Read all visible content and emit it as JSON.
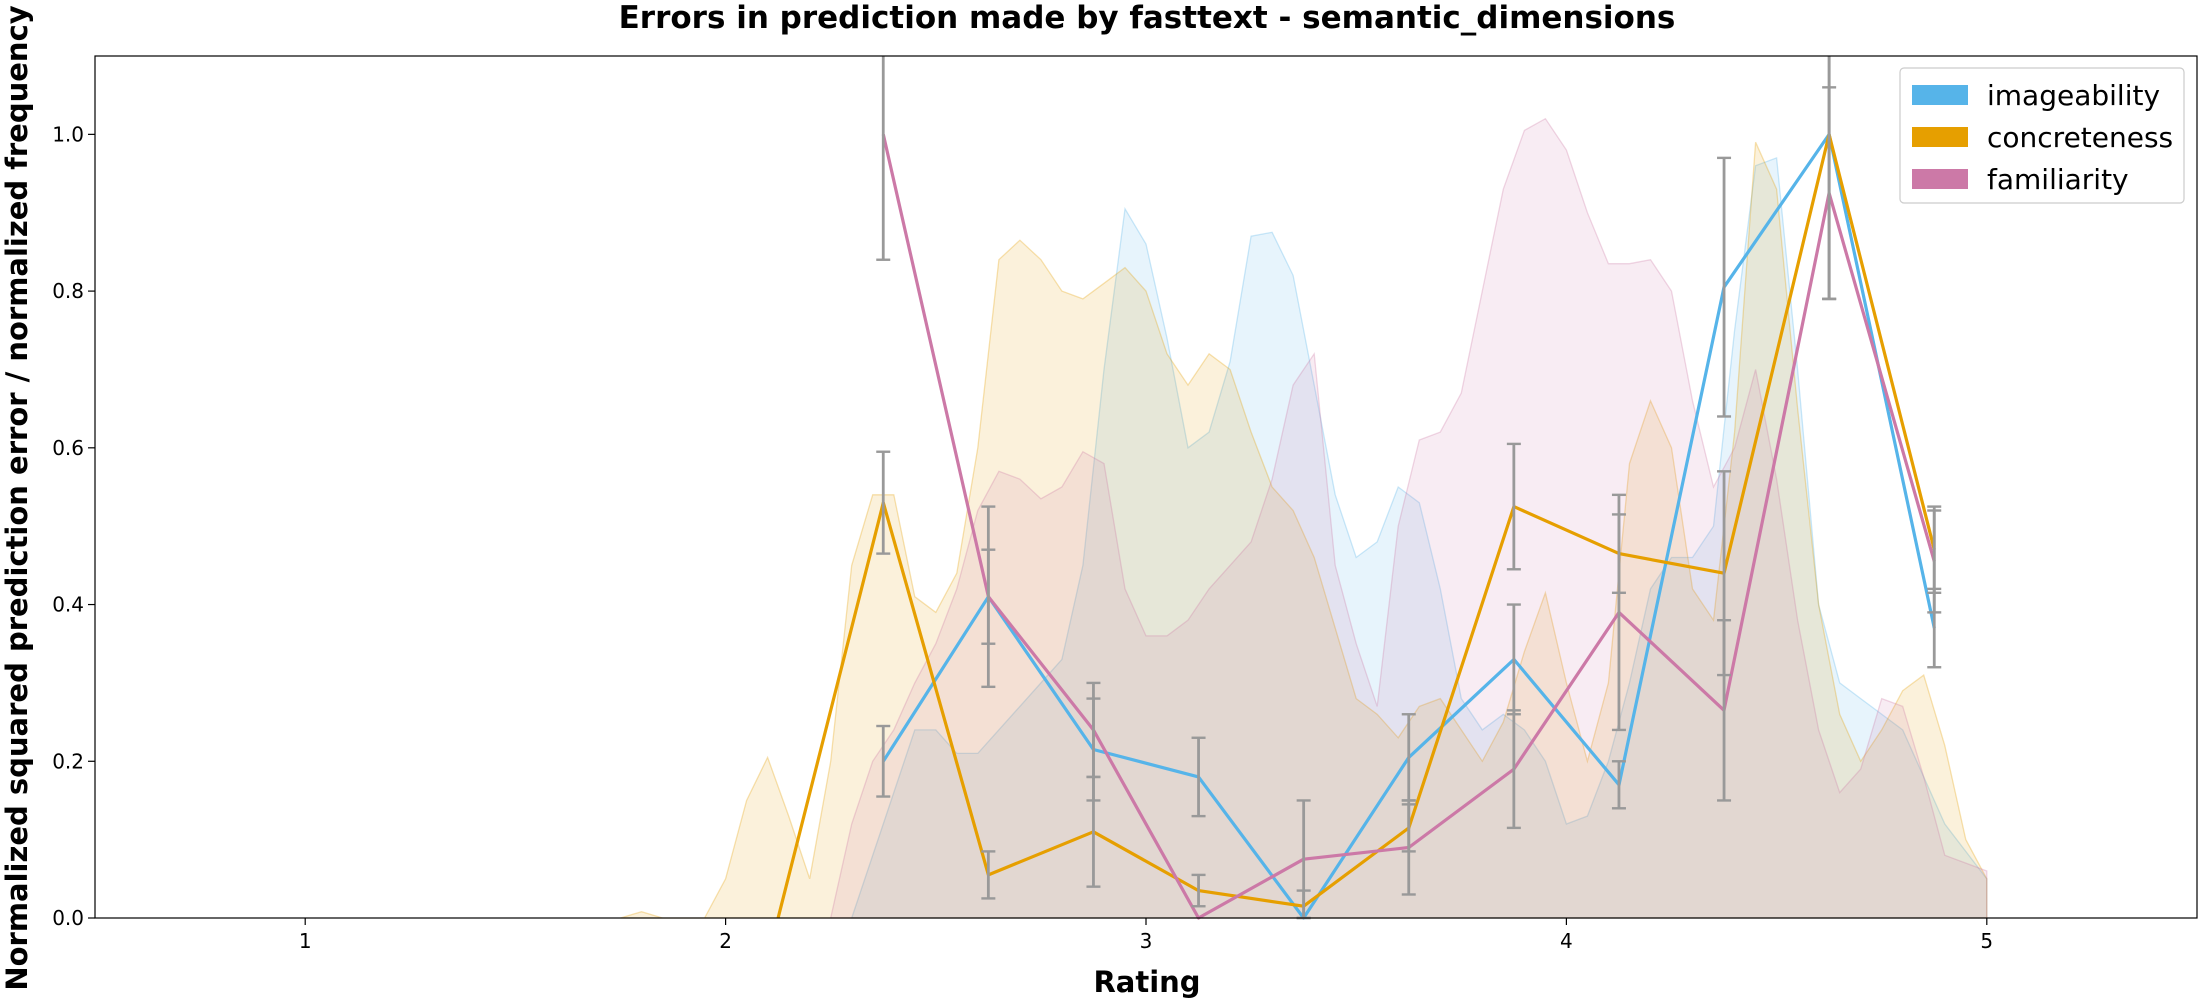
{
  "chart_data": {
    "type": "line",
    "title": "Errors in prediction made by fasttext - semantic_dimensions",
    "xlabel": "Rating",
    "ylabel": "Normalized squared prediction error / normalized frequency",
    "xlim": [
      0.5,
      5.5
    ],
    "ylim": [
      0,
      1.1
    ],
    "xticks": [
      1,
      2,
      3,
      4,
      5
    ],
    "yticks": [
      0.0,
      0.2,
      0.4,
      0.6,
      0.8,
      1.0
    ],
    "xtick_labels": [
      "1",
      "2",
      "3",
      "4",
      "5"
    ],
    "ytick_labels": [
      "0.0",
      "0.2",
      "0.4",
      "0.6",
      "0.8",
      "1.0"
    ],
    "grid": false,
    "legend_position": "upper right",
    "series": [
      {
        "name": "imageability",
        "color": "#56B4E9",
        "points": [
          [
            2.375,
            0.2
          ],
          [
            2.625,
            0.41
          ],
          [
            2.875,
            0.215
          ],
          [
            3.125,
            0.18
          ],
          [
            3.375,
            0.0
          ],
          [
            3.625,
            0.205
          ],
          [
            3.875,
            0.33
          ],
          [
            4.125,
            0.17
          ],
          [
            4.375,
            0.805
          ],
          [
            4.625,
            1.0
          ],
          [
            4.875,
            0.37
          ]
        ],
        "error": [
          0.045,
          0.06,
          0.065,
          0.05,
          0.0,
          0.055,
          0.07,
          0.03,
          0.165,
          0.21,
          0.05
        ],
        "density": [
          [
            2.3,
            0.0
          ],
          [
            2.4,
            0.16
          ],
          [
            2.45,
            0.24
          ],
          [
            2.5,
            0.24
          ],
          [
            2.55,
            0.21
          ],
          [
            2.6,
            0.21
          ],
          [
            2.7,
            0.27
          ],
          [
            2.8,
            0.33
          ],
          [
            2.85,
            0.45
          ],
          [
            2.9,
            0.7
          ],
          [
            2.95,
            0.905
          ],
          [
            3.0,
            0.86
          ],
          [
            3.05,
            0.74
          ],
          [
            3.1,
            0.6
          ],
          [
            3.15,
            0.62
          ],
          [
            3.2,
            0.71
          ],
          [
            3.25,
            0.87
          ],
          [
            3.3,
            0.875
          ],
          [
            3.35,
            0.82
          ],
          [
            3.4,
            0.68
          ],
          [
            3.45,
            0.54
          ],
          [
            3.5,
            0.46
          ],
          [
            3.55,
            0.48
          ],
          [
            3.6,
            0.55
          ],
          [
            3.65,
            0.53
          ],
          [
            3.7,
            0.42
          ],
          [
            3.75,
            0.28
          ],
          [
            3.8,
            0.24
          ],
          [
            3.85,
            0.26
          ],
          [
            3.9,
            0.24
          ],
          [
            3.95,
            0.2
          ],
          [
            4.0,
            0.12
          ],
          [
            4.05,
            0.13
          ],
          [
            4.1,
            0.2
          ],
          [
            4.15,
            0.3
          ],
          [
            4.2,
            0.42
          ],
          [
            4.25,
            0.46
          ],
          [
            4.3,
            0.46
          ],
          [
            4.35,
            0.5
          ],
          [
            4.4,
            0.75
          ],
          [
            4.45,
            0.96
          ],
          [
            4.5,
            0.97
          ],
          [
            4.55,
            0.7
          ],
          [
            4.6,
            0.4
          ],
          [
            4.65,
            0.3
          ],
          [
            4.7,
            0.28
          ],
          [
            4.8,
            0.24
          ],
          [
            4.9,
            0.12
          ],
          [
            5.0,
            0.05
          ]
        ]
      },
      {
        "name": "concreteness",
        "color": "#E69F00",
        "points": [
          [
            2.125,
            0.0
          ],
          [
            2.375,
            0.53
          ],
          [
            2.625,
            0.055
          ],
          [
            2.875,
            0.11
          ],
          [
            3.125,
            0.035
          ],
          [
            3.375,
            0.015
          ],
          [
            3.625,
            0.115
          ],
          [
            3.875,
            0.525
          ],
          [
            4.125,
            0.465
          ],
          [
            4.375,
            0.44
          ],
          [
            4.625,
            1.0
          ],
          [
            4.875,
            0.47
          ]
        ],
        "error": [
          0.0,
          0.065,
          0.03,
          0.07,
          0.02,
          0.02,
          0.03,
          0.08,
          0.05,
          0.13,
          0.21,
          0.055
        ],
        "density": [
          [
            1.75,
            0.0
          ],
          [
            1.8,
            0.008
          ],
          [
            1.85,
            0.0
          ],
          [
            1.95,
            0.0
          ],
          [
            2.0,
            0.05
          ],
          [
            2.05,
            0.15
          ],
          [
            2.1,
            0.205
          ],
          [
            2.15,
            0.13
          ],
          [
            2.2,
            0.05
          ],
          [
            2.25,
            0.2
          ],
          [
            2.3,
            0.45
          ],
          [
            2.35,
            0.54
          ],
          [
            2.4,
            0.54
          ],
          [
            2.45,
            0.41
          ],
          [
            2.5,
            0.39
          ],
          [
            2.55,
            0.44
          ],
          [
            2.6,
            0.6
          ],
          [
            2.65,
            0.84
          ],
          [
            2.7,
            0.865
          ],
          [
            2.75,
            0.84
          ],
          [
            2.8,
            0.8
          ],
          [
            2.85,
            0.79
          ],
          [
            2.9,
            0.81
          ],
          [
            2.95,
            0.83
          ],
          [
            3.0,
            0.8
          ],
          [
            3.05,
            0.72
          ],
          [
            3.1,
            0.68
          ],
          [
            3.15,
            0.72
          ],
          [
            3.2,
            0.7
          ],
          [
            3.25,
            0.62
          ],
          [
            3.3,
            0.55
          ],
          [
            3.35,
            0.52
          ],
          [
            3.4,
            0.46
          ],
          [
            3.45,
            0.37
          ],
          [
            3.5,
            0.28
          ],
          [
            3.55,
            0.26
          ],
          [
            3.6,
            0.23
          ],
          [
            3.65,
            0.27
          ],
          [
            3.7,
            0.28
          ],
          [
            3.75,
            0.24
          ],
          [
            3.8,
            0.2
          ],
          [
            3.85,
            0.25
          ],
          [
            3.9,
            0.34
          ],
          [
            3.95,
            0.415
          ],
          [
            4.0,
            0.3
          ],
          [
            4.05,
            0.2
          ],
          [
            4.1,
            0.3
          ],
          [
            4.15,
            0.58
          ],
          [
            4.2,
            0.66
          ],
          [
            4.25,
            0.6
          ],
          [
            4.3,
            0.42
          ],
          [
            4.35,
            0.38
          ],
          [
            4.4,
            0.62
          ],
          [
            4.45,
            0.99
          ],
          [
            4.5,
            0.93
          ],
          [
            4.55,
            0.65
          ],
          [
            4.6,
            0.4
          ],
          [
            4.65,
            0.26
          ],
          [
            4.7,
            0.2
          ],
          [
            4.75,
            0.24
          ],
          [
            4.8,
            0.29
          ],
          [
            4.85,
            0.31
          ],
          [
            4.9,
            0.22
          ],
          [
            4.95,
            0.1
          ],
          [
            5.0,
            0.05
          ]
        ]
      },
      {
        "name": "familiarity",
        "color": "#CC79A7",
        "points": [
          [
            2.375,
            1.0
          ],
          [
            2.625,
            0.41
          ],
          [
            2.875,
            0.24
          ],
          [
            3.125,
            0.0
          ],
          [
            3.375,
            0.075
          ],
          [
            3.625,
            0.09
          ],
          [
            3.875,
            0.19
          ],
          [
            4.125,
            0.39
          ],
          [
            4.375,
            0.265
          ],
          [
            4.625,
            0.925
          ],
          [
            4.875,
            0.455
          ]
        ],
        "error": [
          0.16,
          0.115,
          0.06,
          0.0,
          0.075,
          0.06,
          0.075,
          0.15,
          0.115,
          0.135,
          0.065
        ],
        "density": [
          [
            2.25,
            0.0
          ],
          [
            2.3,
            0.12
          ],
          [
            2.35,
            0.2
          ],
          [
            2.4,
            0.24
          ],
          [
            2.45,
            0.3
          ],
          [
            2.5,
            0.35
          ],
          [
            2.55,
            0.42
          ],
          [
            2.6,
            0.52
          ],
          [
            2.65,
            0.57
          ],
          [
            2.7,
            0.56
          ],
          [
            2.75,
            0.535
          ],
          [
            2.8,
            0.55
          ],
          [
            2.85,
            0.595
          ],
          [
            2.9,
            0.58
          ],
          [
            2.95,
            0.42
          ],
          [
            3.0,
            0.36
          ],
          [
            3.05,
            0.36
          ],
          [
            3.1,
            0.38
          ],
          [
            3.15,
            0.42
          ],
          [
            3.2,
            0.45
          ],
          [
            3.25,
            0.48
          ],
          [
            3.3,
            0.56
          ],
          [
            3.35,
            0.68
          ],
          [
            3.4,
            0.72
          ],
          [
            3.45,
            0.45
          ],
          [
            3.5,
            0.35
          ],
          [
            3.55,
            0.27
          ],
          [
            3.6,
            0.5
          ],
          [
            3.65,
            0.61
          ],
          [
            3.7,
            0.62
          ],
          [
            3.75,
            0.67
          ],
          [
            3.8,
            0.8
          ],
          [
            3.85,
            0.93
          ],
          [
            3.9,
            1.005
          ],
          [
            3.95,
            1.02
          ],
          [
            4.0,
            0.98
          ],
          [
            4.05,
            0.9
          ],
          [
            4.1,
            0.835
          ],
          [
            4.15,
            0.835
          ],
          [
            4.2,
            0.84
          ],
          [
            4.25,
            0.8
          ],
          [
            4.3,
            0.66
          ],
          [
            4.35,
            0.55
          ],
          [
            4.4,
            0.6
          ],
          [
            4.45,
            0.7
          ],
          [
            4.5,
            0.56
          ],
          [
            4.55,
            0.38
          ],
          [
            4.6,
            0.24
          ],
          [
            4.65,
            0.16
          ],
          [
            4.7,
            0.19
          ],
          [
            4.75,
            0.28
          ],
          [
            4.8,
            0.27
          ],
          [
            4.85,
            0.18
          ],
          [
            4.9,
            0.08
          ],
          [
            4.95,
            0.07
          ],
          [
            5.0,
            0.06
          ]
        ]
      }
    ]
  }
}
